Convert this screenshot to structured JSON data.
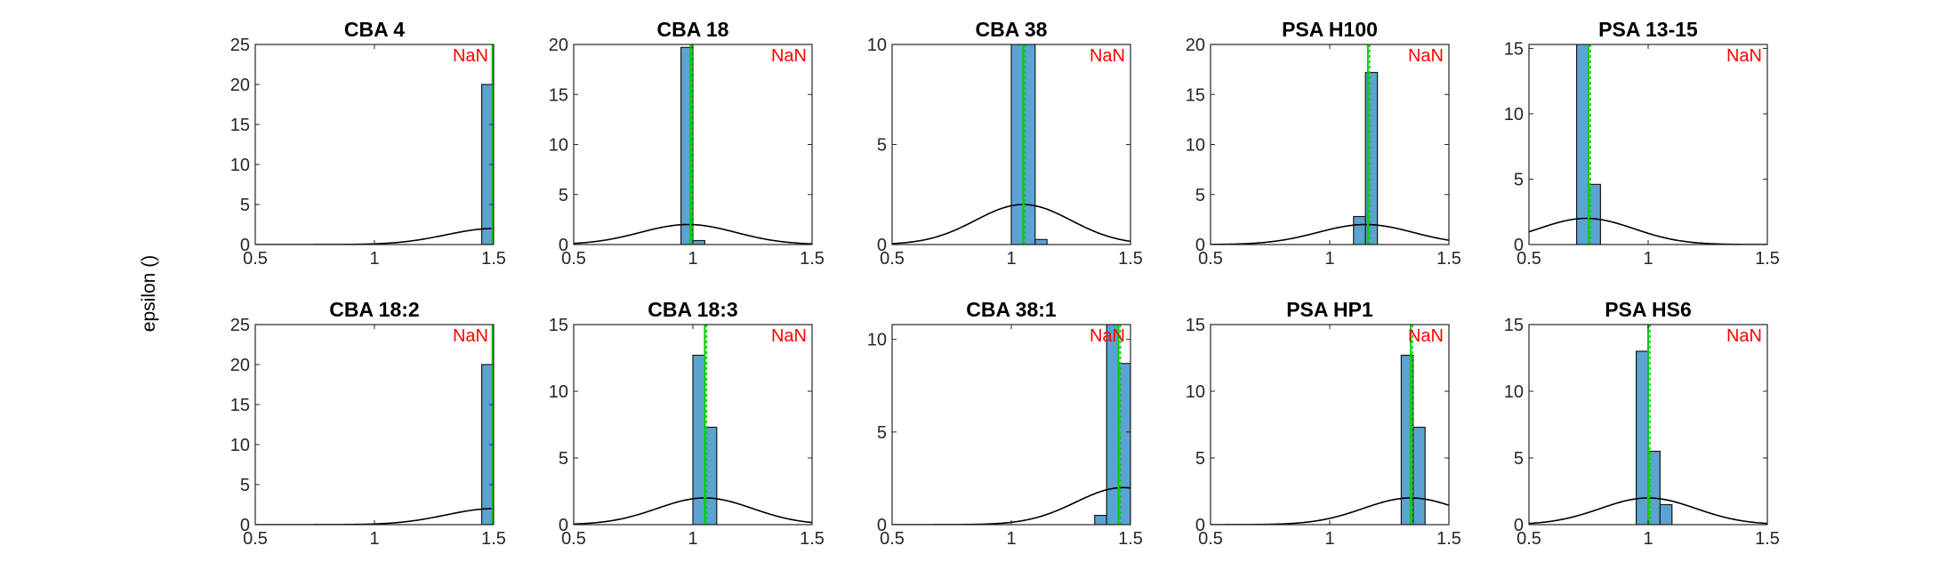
{
  "figure": {
    "ylabel": "epsilon ()",
    "colors": {
      "bar_fill": "#5ba3d0",
      "bar_edge": "#1a1a1a",
      "curve": "#000000",
      "green_line": "#00d000",
      "nan_text": "#ff0000"
    }
  },
  "chart_data": [
    {
      "type": "bar",
      "title": "CBA 4",
      "annotation": "NaN",
      "xlim": [
        0.5,
        1.5
      ],
      "ylim": [
        0,
        25
      ],
      "xticks": [
        "0.5",
        "1",
        "1.5"
      ],
      "yticks": [
        "0",
        "5",
        "10",
        "15",
        "20",
        "25"
      ],
      "bins": [
        {
          "x0": 1.45,
          "x1": 1.495,
          "value": 20
        }
      ],
      "vline": 1.495,
      "gauss": {
        "mu": 1.5,
        "sigma": 0.2,
        "peak": 2
      }
    },
    {
      "type": "bar",
      "title": "CBA 18",
      "annotation": "NaN",
      "xlim": [
        0.5,
        1.5
      ],
      "ylim": [
        0,
        20
      ],
      "xticks": [
        "0.5",
        "1",
        "1.5"
      ],
      "yticks": [
        "0",
        "5",
        "10",
        "15",
        "20"
      ],
      "bins": [
        {
          "x0": 0.95,
          "x1": 1.0,
          "value": 19.7
        },
        {
          "x0": 1.0,
          "x1": 1.05,
          "value": 0.4
        }
      ],
      "vline": 0.99,
      "gauss": {
        "mu": 0.98,
        "sigma": 0.2,
        "peak": 2
      }
    },
    {
      "type": "bar",
      "title": "CBA 38",
      "annotation": "NaN",
      "xlim": [
        0.5,
        1.5
      ],
      "ylim": [
        0,
        10
      ],
      "xticks": [
        "0.5",
        "1",
        "1.5"
      ],
      "yticks": [
        "0",
        "5",
        "10"
      ],
      "bins": [
        {
          "x0": 1.0,
          "x1": 1.1,
          "value": 10
        },
        {
          "x0": 1.1,
          "x1": 1.15,
          "value": 0.25
        }
      ],
      "vline": 1.05,
      "gauss": {
        "mu": 1.05,
        "sigma": 0.2,
        "peak": 2
      }
    },
    {
      "type": "bar",
      "title": "PSA H100",
      "annotation": "NaN",
      "xlim": [
        0.5,
        1.5
      ],
      "ylim": [
        0,
        20
      ],
      "xticks": [
        "0.5",
        "1",
        "1.5"
      ],
      "yticks": [
        "0",
        "5",
        "10",
        "15",
        "20"
      ],
      "bins": [
        {
          "x0": 1.1,
          "x1": 1.15,
          "value": 2.8
        },
        {
          "x0": 1.15,
          "x1": 1.2,
          "value": 17.2
        }
      ],
      "vline": 1.16,
      "gauss": {
        "mu": 1.15,
        "sigma": 0.2,
        "peak": 2
      }
    },
    {
      "type": "bar",
      "title": "PSA 13-15",
      "annotation": "NaN",
      "xlim": [
        0.5,
        1.5
      ],
      "ylim": [
        0,
        15.3
      ],
      "xticks": [
        "0.5",
        "1",
        "1.5"
      ],
      "yticks": [
        "0",
        "5",
        "10",
        "15"
      ],
      "bins": [
        {
          "x0": 0.7,
          "x1": 0.75,
          "value": 15.3
        },
        {
          "x0": 0.75,
          "x1": 0.8,
          "value": 4.6
        }
      ],
      "vline": 0.75,
      "gauss": {
        "mu": 0.74,
        "sigma": 0.2,
        "peak": 2
      }
    },
    {
      "type": "bar",
      "title": "CBA 18:2",
      "annotation": "NaN",
      "xlim": [
        0.5,
        1.5
      ],
      "ylim": [
        0,
        25
      ],
      "xticks": [
        "0.5",
        "1",
        "1.5"
      ],
      "yticks": [
        "0",
        "5",
        "10",
        "15",
        "20",
        "25"
      ],
      "bins": [
        {
          "x0": 1.45,
          "x1": 1.495,
          "value": 20
        }
      ],
      "vline": 1.495,
      "gauss": {
        "mu": 1.5,
        "sigma": 0.2,
        "peak": 2
      }
    },
    {
      "type": "bar",
      "title": "CBA 18:3",
      "annotation": "NaN",
      "xlim": [
        0.5,
        1.5
      ],
      "ylim": [
        0,
        15
      ],
      "xticks": [
        "0.5",
        "1",
        "1.5"
      ],
      "yticks": [
        "0",
        "5",
        "10",
        "15"
      ],
      "bins": [
        {
          "x0": 1.0,
          "x1": 1.05,
          "value": 12.7
        },
        {
          "x0": 1.05,
          "x1": 1.1,
          "value": 7.3
        }
      ],
      "vline": 1.05,
      "gauss": {
        "mu": 1.05,
        "sigma": 0.2,
        "peak": 2
      }
    },
    {
      "type": "bar",
      "title": "CBA 38:1",
      "annotation": "NaN",
      "xlim": [
        0.5,
        1.5
      ],
      "ylim": [
        0,
        10.8
      ],
      "xticks": [
        "0.5",
        "1",
        "1.5"
      ],
      "yticks": [
        "0",
        "5",
        "10"
      ],
      "bins": [
        {
          "x0": 1.35,
          "x1": 1.4,
          "value": 0.5
        },
        {
          "x0": 1.4,
          "x1": 1.45,
          "value": 10.8
        },
        {
          "x0": 1.45,
          "x1": 1.5,
          "value": 8.7
        }
      ],
      "vline": 1.45,
      "gauss": {
        "mu": 1.47,
        "sigma": 0.2,
        "peak": 2
      }
    },
    {
      "type": "bar",
      "title": "PSA HP1",
      "annotation": "NaN",
      "xlim": [
        0.5,
        1.5
      ],
      "ylim": [
        0,
        15
      ],
      "xticks": [
        "0.5",
        "1",
        "1.5"
      ],
      "yticks": [
        "0",
        "5",
        "10",
        "15"
      ],
      "bins": [
        {
          "x0": 1.3,
          "x1": 1.35,
          "value": 12.7
        },
        {
          "x0": 1.35,
          "x1": 1.4,
          "value": 7.3
        }
      ],
      "vline": 1.34,
      "gauss": {
        "mu": 1.34,
        "sigma": 0.2,
        "peak": 2
      }
    },
    {
      "type": "bar",
      "title": "PSA HS6",
      "annotation": "NaN",
      "xlim": [
        0.5,
        1.5
      ],
      "ylim": [
        0,
        15
      ],
      "xticks": [
        "0.5",
        "1",
        "1.5"
      ],
      "yticks": [
        "0",
        "5",
        "10",
        "15"
      ],
      "bins": [
        {
          "x0": 0.95,
          "x1": 1.0,
          "value": 13
        },
        {
          "x0": 1.0,
          "x1": 1.05,
          "value": 5.5
        },
        {
          "x0": 1.05,
          "x1": 1.1,
          "value": 1.5
        }
      ],
      "vline": 1.0,
      "gauss": {
        "mu": 1.0,
        "sigma": 0.2,
        "peak": 2
      }
    }
  ]
}
